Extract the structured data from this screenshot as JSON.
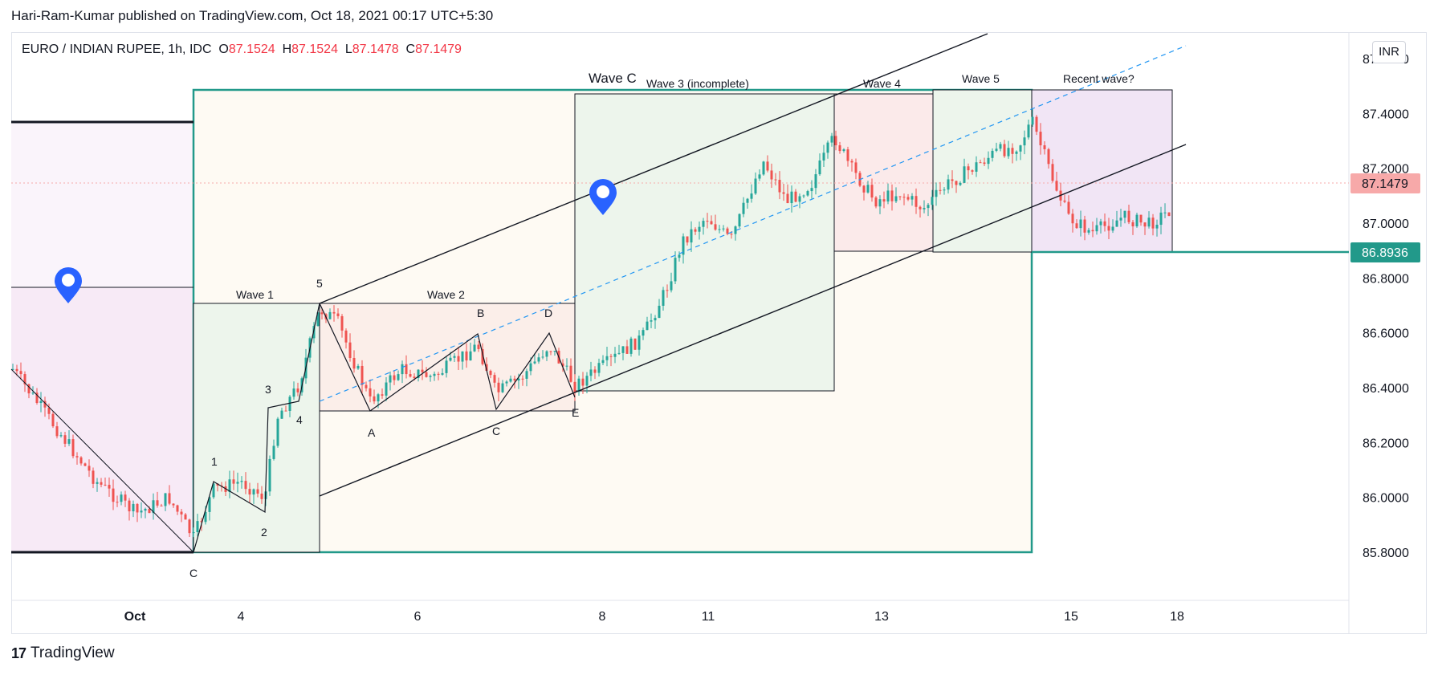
{
  "header": {
    "text": "Hari-Ram-Kumar published on TradingView.com, Oct 18, 2021 00:17 UTC+5:30"
  },
  "symbol": {
    "name": "EURO / INDIAN RUPEE, 1h, IDC",
    "open_label": "O",
    "open": "87.1524",
    "high_label": "H",
    "high": "87.1524",
    "low_label": "L",
    "low": "87.1478",
    "close_label": "C",
    "close": "87.1479"
  },
  "currency": "INR",
  "footer": {
    "brand": "TradingView",
    "mark": "17"
  },
  "colors": {
    "up": "#26a69a",
    "down": "#ef5350",
    "teal": "#22998a",
    "blue_pin": "#2962ff",
    "dashed": "#2196f3",
    "price_badge": "#f7a9a9",
    "level_badge": "#22998a"
  },
  "chart_data": {
    "type": "candlestick",
    "y_ticks": [
      "85.8000",
      "86.0000",
      "86.2000",
      "86.4000",
      "86.6000",
      "86.8000",
      "87.0000",
      "87.2000",
      "87.4000",
      "87.6000"
    ],
    "x_ticks": [
      "Oct",
      "4",
      "6",
      "8",
      "11",
      "13",
      "15",
      "18"
    ],
    "last_price": "87.1479",
    "level_price": "86.8936",
    "annotations": {
      "wave_c_title": "Wave C",
      "wave1": "Wave 1",
      "wave2": "Wave 2",
      "wave3": "Wave 3 (incomplete)",
      "wave4": "Wave 4",
      "wave5": "Wave 5",
      "recent": "Recent wave?",
      "points": [
        "C",
        "1",
        "2",
        "3",
        "4",
        "5",
        "A",
        "B",
        "C",
        "D",
        "E"
      ]
    }
  }
}
